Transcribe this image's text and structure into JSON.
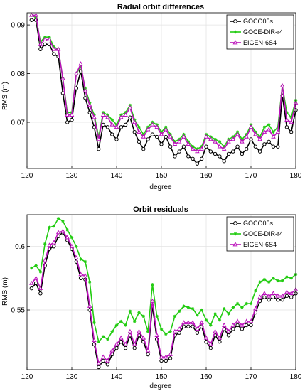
{
  "chart_data": [
    {
      "type": "line",
      "title": "Radial orbit differences",
      "xlabel": "degree",
      "ylabel": "RMS (m)",
      "xlim": [
        120,
        180
      ],
      "ylim": [
        0.0605,
        0.0925
      ],
      "xticks": [
        120,
        130,
        140,
        150,
        160,
        170,
        180
      ],
      "yticks": [
        0.07,
        0.08,
        0.09
      ],
      "yticklabels": [
        "0.07",
        "0.08",
        "0.09"
      ],
      "grid": true,
      "legend_position": "top-right",
      "x": [
        121,
        122,
        123,
        124,
        125,
        126,
        127,
        128,
        129,
        130,
        131,
        132,
        133,
        134,
        135,
        136,
        137,
        138,
        139,
        140,
        141,
        142,
        143,
        144,
        145,
        146,
        147,
        148,
        149,
        150,
        151,
        152,
        153,
        154,
        155,
        156,
        157,
        158,
        159,
        160,
        161,
        162,
        163,
        164,
        165,
        166,
        167,
        168,
        169,
        170,
        171,
        172,
        173,
        174,
        175,
        176,
        177,
        178,
        179,
        180
      ],
      "series": [
        {
          "name": "GOCO05s",
          "color": "#000000",
          "marker": "circle",
          "values": [
            0.091,
            0.091,
            0.085,
            0.086,
            0.086,
            0.084,
            0.0835,
            0.076,
            0.07,
            0.0705,
            0.077,
            0.0805,
            0.075,
            0.072,
            0.069,
            0.0645,
            0.0695,
            0.069,
            0.0675,
            0.0665,
            0.069,
            0.0695,
            0.071,
            0.068,
            0.066,
            0.0645,
            0.0665,
            0.0675,
            0.067,
            0.0655,
            0.067,
            0.065,
            0.063,
            0.064,
            0.065,
            0.063,
            0.0625,
            0.0615,
            0.0625,
            0.065,
            0.064,
            0.0635,
            0.063,
            0.062,
            0.0635,
            0.064,
            0.065,
            0.0635,
            0.0645,
            0.0665,
            0.065,
            0.064,
            0.0655,
            0.066,
            0.065,
            0.065,
            0.0755,
            0.069,
            0.068,
            0.0725
          ]
        },
        {
          "name": "GOCE-DIR-r4",
          "color": "#22cc11",
          "marker": "star",
          "values": [
            0.092,
            0.0915,
            0.0865,
            0.0875,
            0.0875,
            0.0855,
            0.085,
            0.079,
            0.072,
            0.072,
            0.08,
            0.0815,
            0.077,
            0.074,
            0.0715,
            0.067,
            0.072,
            0.0715,
            0.0705,
            0.0695,
            0.0715,
            0.072,
            0.0735,
            0.0705,
            0.069,
            0.0675,
            0.069,
            0.07,
            0.0695,
            0.068,
            0.069,
            0.0675,
            0.066,
            0.0665,
            0.0675,
            0.066,
            0.065,
            0.0645,
            0.065,
            0.0675,
            0.067,
            0.0665,
            0.066,
            0.065,
            0.0665,
            0.067,
            0.068,
            0.0665,
            0.0675,
            0.0695,
            0.068,
            0.067,
            0.069,
            0.0695,
            0.068,
            0.069,
            0.0775,
            0.072,
            0.071,
            0.0745
          ]
        },
        {
          "name": "EIGEN-6S4",
          "color": "#bb11bb",
          "marker": "triangle",
          "values": [
            0.092,
            0.092,
            0.086,
            0.087,
            0.087,
            0.085,
            0.085,
            0.079,
            0.0715,
            0.0715,
            0.08,
            0.082,
            0.0765,
            0.0735,
            0.071,
            0.0665,
            0.0715,
            0.071,
            0.0695,
            0.069,
            0.071,
            0.0715,
            0.073,
            0.07,
            0.068,
            0.067,
            0.0685,
            0.0695,
            0.069,
            0.0675,
            0.0685,
            0.067,
            0.0655,
            0.066,
            0.067,
            0.0655,
            0.0645,
            0.064,
            0.0645,
            0.067,
            0.0665,
            0.066,
            0.065,
            0.0645,
            0.066,
            0.0665,
            0.0675,
            0.066,
            0.067,
            0.069,
            0.0675,
            0.0665,
            0.068,
            0.0685,
            0.067,
            0.068,
            0.0775,
            0.0705,
            0.07,
            0.074
          ]
        }
      ]
    },
    {
      "type": "line",
      "title": "Orbit residuals",
      "xlabel": "degree",
      "ylabel": "RMS (m)",
      "xlim": [
        120,
        180
      ],
      "ylim": [
        0.503,
        0.625
      ],
      "xticks": [
        120,
        130,
        140,
        150,
        160,
        170,
        180
      ],
      "yticks": [
        0.55,
        0.6
      ],
      "yticklabels": [
        "0.55",
        "0.6"
      ],
      "grid": true,
      "legend_position": "top-right",
      "x": [
        121,
        122,
        123,
        124,
        125,
        126,
        127,
        128,
        129,
        130,
        131,
        132,
        133,
        134,
        135,
        136,
        137,
        138,
        139,
        140,
        141,
        142,
        143,
        144,
        145,
        146,
        147,
        148,
        149,
        150,
        151,
        152,
        153,
        154,
        155,
        156,
        157,
        158,
        159,
        160,
        161,
        162,
        163,
        164,
        165,
        166,
        167,
        168,
        169,
        170,
        171,
        172,
        173,
        174,
        175,
        176,
        177,
        178,
        179,
        180
      ],
      "series": [
        {
          "name": "GOCO05s",
          "color": "#000000",
          "marker": "circle",
          "values": [
            0.567,
            0.571,
            0.563,
            0.585,
            0.598,
            0.6,
            0.608,
            0.611,
            0.605,
            0.598,
            0.588,
            0.575,
            0.574,
            0.55,
            0.523,
            0.505,
            0.51,
            0.507,
            0.515,
            0.52,
            0.525,
            0.52,
            0.53,
            0.52,
            0.53,
            0.525,
            0.515,
            0.553,
            0.527,
            0.51,
            0.51,
            0.512,
            0.53,
            0.532,
            0.537,
            0.537,
            0.537,
            0.532,
            0.537,
            0.525,
            0.52,
            0.53,
            0.525,
            0.535,
            0.53,
            0.535,
            0.538,
            0.535,
            0.538,
            0.538,
            0.548,
            0.557,
            0.56,
            0.558,
            0.56,
            0.558,
            0.558,
            0.561,
            0.56,
            0.563
          ]
        },
        {
          "name": "GOCE-DIR-r4",
          "color": "#22cc11",
          "marker": "star",
          "values": [
            0.583,
            0.585,
            0.58,
            0.602,
            0.615,
            0.616,
            0.622,
            0.62,
            0.613,
            0.607,
            0.6,
            0.59,
            0.588,
            0.572,
            0.54,
            0.525,
            0.529,
            0.527,
            0.533,
            0.538,
            0.541,
            0.538,
            0.549,
            0.541,
            0.548,
            0.545,
            0.533,
            0.57,
            0.545,
            0.535,
            0.531,
            0.533,
            0.545,
            0.549,
            0.553,
            0.552,
            0.551,
            0.546,
            0.55,
            0.542,
            0.538,
            0.547,
            0.542,
            0.551,
            0.547,
            0.552,
            0.555,
            0.552,
            0.555,
            0.555,
            0.565,
            0.572,
            0.574,
            0.572,
            0.575,
            0.573,
            0.573,
            0.576,
            0.575,
            0.578
          ]
        },
        {
          "name": "EIGEN-6S4",
          "color": "#bb11bb",
          "marker": "triangle",
          "values": [
            0.571,
            0.575,
            0.567,
            0.589,
            0.601,
            0.603,
            0.611,
            0.612,
            0.607,
            0.6,
            0.591,
            0.578,
            0.577,
            0.553,
            0.526,
            0.508,
            0.513,
            0.51,
            0.518,
            0.523,
            0.528,
            0.523,
            0.533,
            0.523,
            0.533,
            0.528,
            0.518,
            0.557,
            0.53,
            0.513,
            0.513,
            0.515,
            0.533,
            0.535,
            0.54,
            0.54,
            0.54,
            0.535,
            0.54,
            0.528,
            0.523,
            0.533,
            0.528,
            0.538,
            0.533,
            0.538,
            0.541,
            0.538,
            0.541,
            0.541,
            0.551,
            0.56,
            0.563,
            0.561,
            0.563,
            0.561,
            0.561,
            0.564,
            0.563,
            0.566
          ]
        }
      ]
    }
  ]
}
